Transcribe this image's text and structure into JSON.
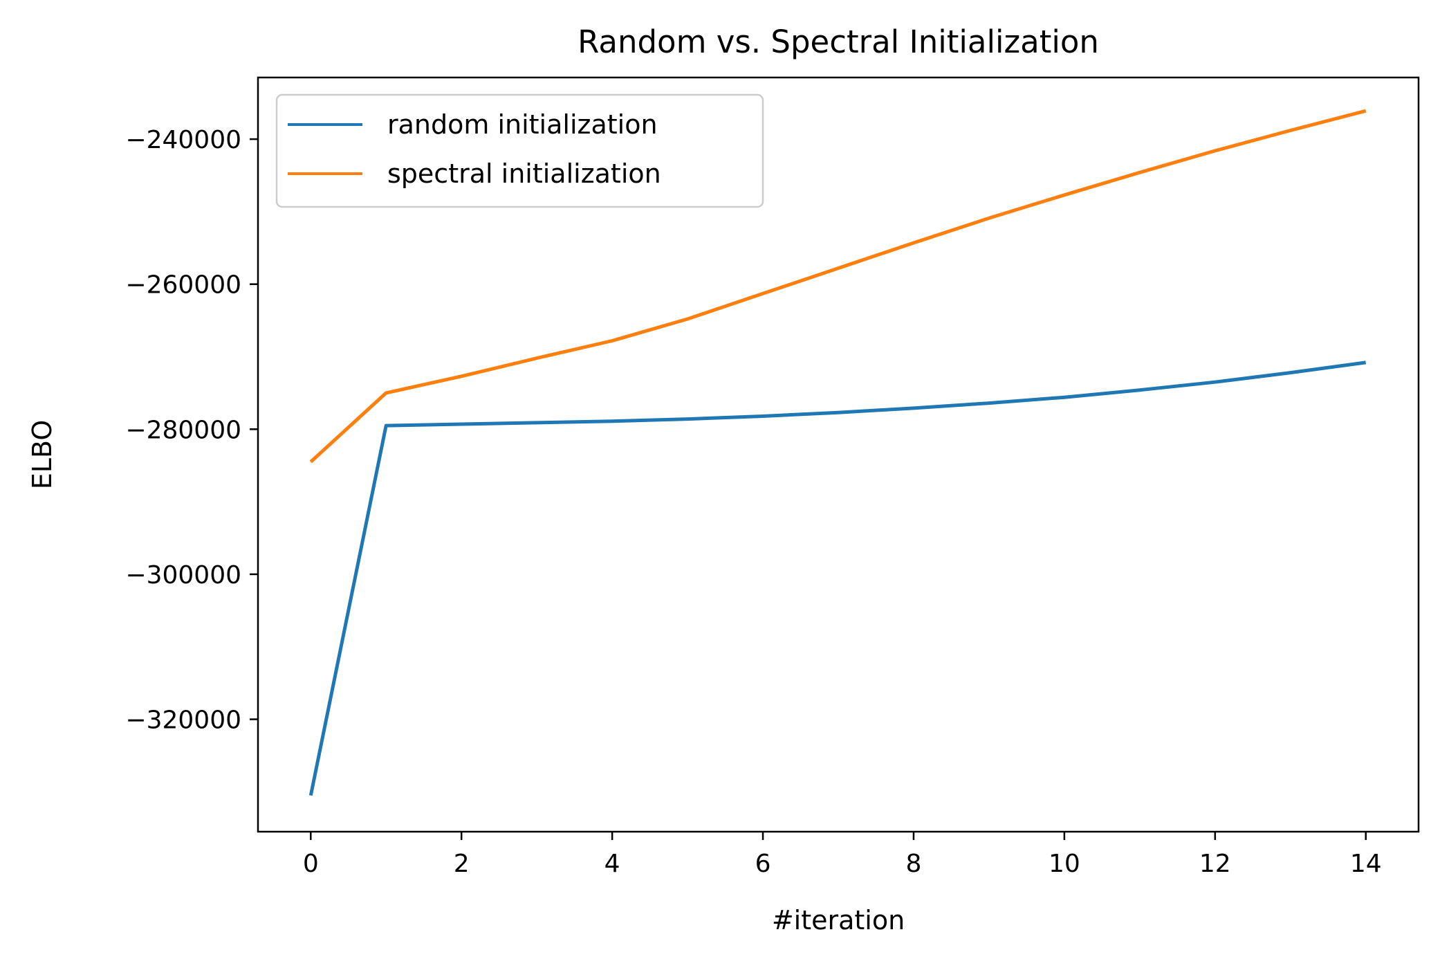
{
  "chart_data": {
    "type": "line",
    "title": "Random vs. Spectral Initialization",
    "xlabel": "#iteration",
    "ylabel": "ELBO",
    "xlim": [
      -0.7,
      14.7
    ],
    "ylim": [
      -335500,
      -231500
    ],
    "xticks": [
      0,
      2,
      4,
      6,
      8,
      10,
      12,
      14
    ],
    "xtick_labels": [
      "0",
      "2",
      "4",
      "6",
      "8",
      "10",
      "12",
      "14"
    ],
    "yticks": [
      -240000,
      -260000,
      -280000,
      -300000,
      -320000
    ],
    "ytick_labels": [
      "−240000",
      "−260000",
      "−280000",
      "−300000",
      "−320000"
    ],
    "grid": false,
    "legend_position": "top-left",
    "x": [
      0,
      1,
      2,
      3,
      4,
      5,
      6,
      7,
      8,
      9,
      10,
      11,
      12,
      13,
      14
    ],
    "series": [
      {
        "name": "random initialization",
        "color": "#1f77b4",
        "values": [
          -330500,
          -279500,
          -279300,
          -279100,
          -278900,
          -278600,
          -278200,
          -277700,
          -277100,
          -276400,
          -275600,
          -274600,
          -273500,
          -272200,
          -270800
        ]
      },
      {
        "name": "spectral initialization",
        "color": "#ff7f0e",
        "values": [
          -284500,
          -275000,
          -272700,
          -270200,
          -267800,
          -264800,
          -261300,
          -257800,
          -254300,
          -250900,
          -247700,
          -244600,
          -241600,
          -238800,
          -236100
        ]
      }
    ]
  }
}
